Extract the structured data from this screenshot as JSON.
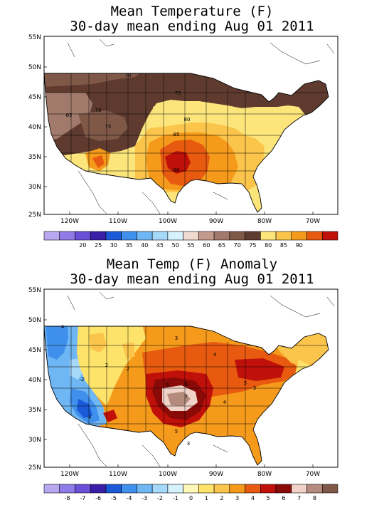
{
  "panel1": {
    "title_line1": "Mean Temperature (F)",
    "title_line2": "30-day mean ending Aug 01 2011",
    "lat_labels": [
      "55N",
      "50N",
      "45N",
      "40N",
      "35N",
      "30N",
      "25N"
    ],
    "lon_labels": [
      "120W",
      "110W",
      "100W",
      "90W",
      "80W",
      "70W"
    ],
    "colorbar_colors": [
      "#b8a8f0",
      "#8f7ce8",
      "#6a4fd8",
      "#3a1fa8",
      "#1a5ad8",
      "#3f8fec",
      "#6fb6f4",
      "#a6d8fa",
      "#d6f2fc",
      "#f0d9cf",
      "#c49a8c",
      "#a27a6c",
      "#7f5848",
      "#5e3b2e",
      "#fce57a",
      "#fbc44a",
      "#f59a1a",
      "#e85a10",
      "#c0100a"
    ],
    "colorbar_labels": [
      "20",
      "25",
      "30",
      "35",
      "40",
      "45",
      "50",
      "55",
      "60",
      "65",
      "70",
      "75",
      "80",
      "85",
      "90"
    ],
    "contour_labels": [
      "70",
      "75",
      "65",
      "70",
      "75",
      "80",
      "85",
      "90"
    ]
  },
  "panel2": {
    "title_line1": "Mean Temp (F) Anomaly",
    "title_line2": "30-day mean ending Aug 01 2011",
    "lat_labels": [
      "55N",
      "50N",
      "45N",
      "40N",
      "35N",
      "30N",
      "25N"
    ],
    "lon_labels": [
      "120W",
      "110W",
      "100W",
      "90W",
      "80W",
      "70W"
    ],
    "colorbar_colors": [
      "#b8a8f0",
      "#8f7ce8",
      "#6a4fd8",
      "#3a1fa8",
      "#1a5ad8",
      "#3f8fec",
      "#6fb6f4",
      "#a6d8fa",
      "#d6f2fc",
      "#fff7b8",
      "#fde36a",
      "#fbc44a",
      "#f59a1a",
      "#e85a10",
      "#c0100a",
      "#8a0a08",
      "#f0d2c8",
      "#b58b7d",
      "#7f5848"
    ],
    "colorbar_labels": [
      "-8",
      "-7",
      "-6",
      "-5",
      "-4",
      "-3",
      "-2",
      "-1",
      "0",
      "1",
      "2",
      "3",
      "4",
      "5",
      "6",
      "7",
      "8"
    ],
    "contour_labels": [
      "4",
      "3",
      "2",
      "4",
      "5",
      "6",
      "7",
      "5",
      "4",
      "3",
      "5",
      "3",
      "2",
      "-4",
      "-2"
    ]
  }
}
